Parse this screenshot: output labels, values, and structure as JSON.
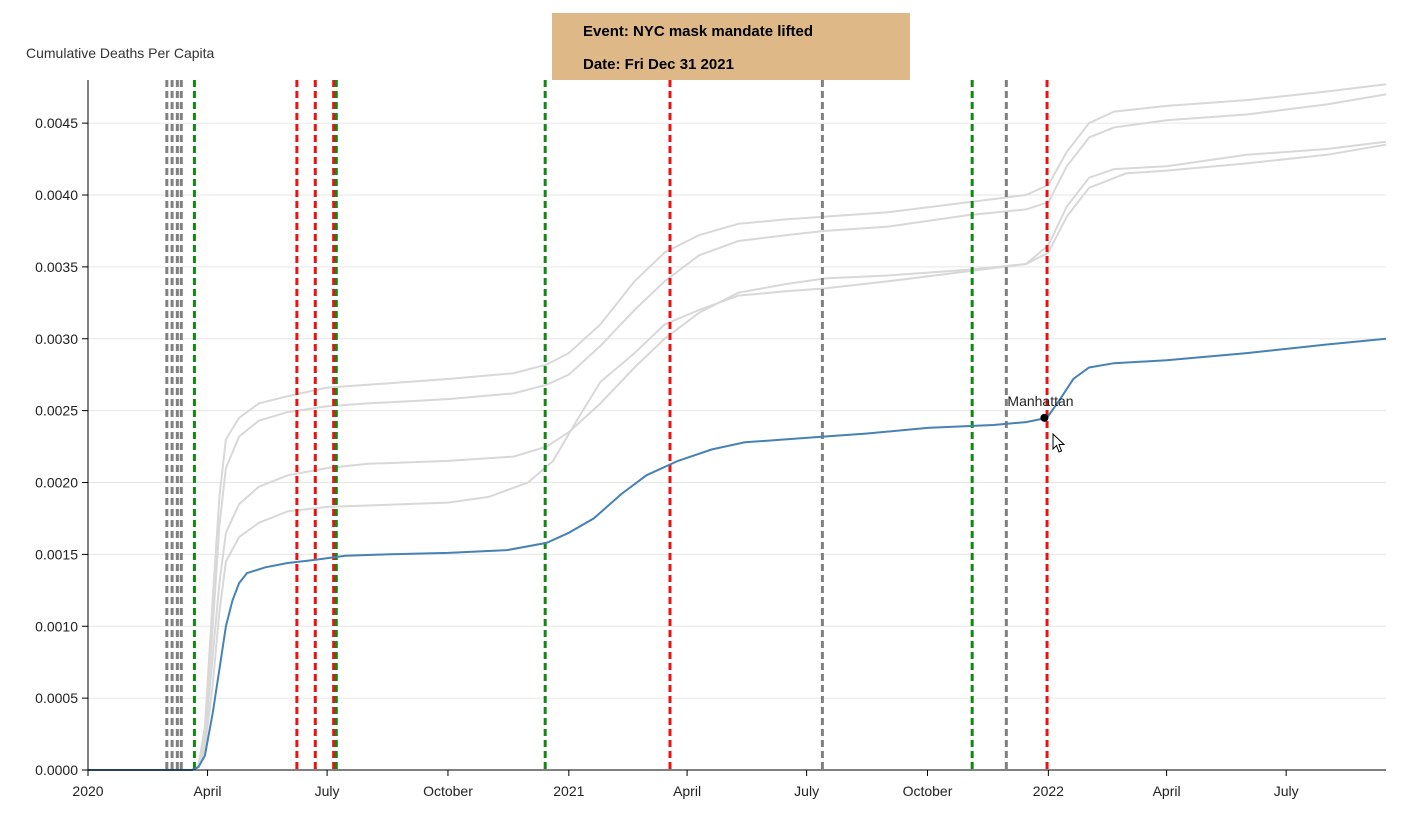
{
  "chart_data": {
    "type": "line",
    "ylabel": "Cumulative Deaths Per Capita",
    "xlim": [
      "2020-01-01",
      "2022-09-15"
    ],
    "ylim": [
      0,
      0.0048
    ],
    "yticks": [
      0.0,
      0.0005,
      0.001,
      0.0015,
      0.002,
      0.0025,
      0.003,
      0.0035,
      0.004,
      0.0045
    ],
    "ytick_labels": [
      "0.0000",
      "0.0005",
      "0.0010",
      "0.0015",
      "0.0020",
      "0.0025",
      "0.0030",
      "0.0035",
      "0.0040",
      "0.0045"
    ],
    "xticks": [
      {
        "date": "2020-01-01",
        "label": "2020"
      },
      {
        "date": "2020-04-01",
        "label": "April"
      },
      {
        "date": "2020-07-01",
        "label": "July"
      },
      {
        "date": "2020-10-01",
        "label": "October"
      },
      {
        "date": "2021-01-01",
        "label": "2021"
      },
      {
        "date": "2021-04-01",
        "label": "April"
      },
      {
        "date": "2021-07-01",
        "label": "July"
      },
      {
        "date": "2021-10-01",
        "label": "October"
      },
      {
        "date": "2022-01-01",
        "label": "2022"
      },
      {
        "date": "2022-04-01",
        "label": "April"
      },
      {
        "date": "2022-07-01",
        "label": "July"
      }
    ],
    "grid": true,
    "colors": {
      "highlight": "#4682b4",
      "background_series": "#d8d8d8",
      "event_red": "#ee1111",
      "event_green": "#118811",
      "event_gray": "#808080",
      "grid": "#e6e6e6",
      "tooltip_bg": "#deb887"
    },
    "series": [
      {
        "name": "Manhattan",
        "highlight": true,
        "points": [
          [
            "2020-01-01",
            0.0
          ],
          [
            "2020-03-20",
            0.0
          ],
          [
            "2020-03-25",
            2e-05
          ],
          [
            "2020-03-30",
            0.0001
          ],
          [
            "2020-04-05",
            0.0004
          ],
          [
            "2020-04-10",
            0.0007
          ],
          [
            "2020-04-15",
            0.001
          ],
          [
            "2020-04-20",
            0.00118
          ],
          [
            "2020-04-25",
            0.0013
          ],
          [
            "2020-05-01",
            0.00137
          ],
          [
            "2020-05-15",
            0.00141
          ],
          [
            "2020-06-01",
            0.00144
          ],
          [
            "2020-06-20",
            0.00146
          ],
          [
            "2020-07-15",
            0.00149
          ],
          [
            "2020-08-15",
            0.0015
          ],
          [
            "2020-10-01",
            0.00151
          ],
          [
            "2020-11-15",
            0.00153
          ],
          [
            "2020-12-15",
            0.00158
          ],
          [
            "2021-01-01",
            0.00165
          ],
          [
            "2021-01-20",
            0.00175
          ],
          [
            "2021-02-10",
            0.00192
          ],
          [
            "2021-03-01",
            0.00205
          ],
          [
            "2021-03-25",
            0.00215
          ],
          [
            "2021-04-20",
            0.00223
          ],
          [
            "2021-05-15",
            0.00228
          ],
          [
            "2021-06-15",
            0.0023
          ],
          [
            "2021-07-15",
            0.00232
          ],
          [
            "2021-08-15",
            0.00234
          ],
          [
            "2021-10-01",
            0.00238
          ],
          [
            "2021-11-20",
            0.0024
          ],
          [
            "2021-12-15",
            0.00242
          ],
          [
            "2021-12-31",
            0.00245
          ],
          [
            "2022-01-10",
            0.00258
          ],
          [
            "2022-01-20",
            0.00272
          ],
          [
            "2022-02-01",
            0.0028
          ],
          [
            "2022-02-20",
            0.00283
          ],
          [
            "2022-04-01",
            0.00285
          ],
          [
            "2022-06-01",
            0.0029
          ],
          [
            "2022-08-01",
            0.00296
          ],
          [
            "2022-09-15",
            0.003
          ]
        ]
      },
      {
        "highlight": false,
        "points": [
          [
            "2020-01-01",
            0.0
          ],
          [
            "2020-03-20",
            0.0
          ],
          [
            "2020-03-25",
            3e-05
          ],
          [
            "2020-03-30",
            0.0003
          ],
          [
            "2020-04-05",
            0.0012
          ],
          [
            "2020-04-10",
            0.0019
          ],
          [
            "2020-04-15",
            0.0023
          ],
          [
            "2020-04-25",
            0.00245
          ],
          [
            "2020-05-10",
            0.00255
          ],
          [
            "2020-06-01",
            0.0026
          ],
          [
            "2020-07-01",
            0.00266
          ],
          [
            "2020-08-01",
            0.00268
          ],
          [
            "2020-10-01",
            0.00272
          ],
          [
            "2020-11-20",
            0.00276
          ],
          [
            "2020-12-15",
            0.00282
          ],
          [
            "2021-01-01",
            0.0029
          ],
          [
            "2021-01-25",
            0.0031
          ],
          [
            "2021-02-20",
            0.0034
          ],
          [
            "2021-03-15",
            0.0036
          ],
          [
            "2021-04-10",
            0.00372
          ],
          [
            "2021-05-10",
            0.0038
          ],
          [
            "2021-06-15",
            0.00383
          ],
          [
            "2021-07-15",
            0.00385
          ],
          [
            "2021-09-01",
            0.00388
          ],
          [
            "2021-11-01",
            0.00395
          ],
          [
            "2021-12-15",
            0.004
          ],
          [
            "2022-01-01",
            0.00407
          ],
          [
            "2022-01-15",
            0.0043
          ],
          [
            "2022-02-01",
            0.0045
          ],
          [
            "2022-02-20",
            0.00458
          ],
          [
            "2022-04-01",
            0.00462
          ],
          [
            "2022-06-01",
            0.00466
          ],
          [
            "2022-08-01",
            0.00472
          ],
          [
            "2022-09-15",
            0.00477
          ]
        ]
      },
      {
        "highlight": false,
        "points": [
          [
            "2020-01-01",
            0.0
          ],
          [
            "2020-03-20",
            0.0
          ],
          [
            "2020-03-25",
            2e-05
          ],
          [
            "2020-03-30",
            0.00025
          ],
          [
            "2020-04-05",
            0.001
          ],
          [
            "2020-04-10",
            0.0017
          ],
          [
            "2020-04-15",
            0.0021
          ],
          [
            "2020-04-25",
            0.00232
          ],
          [
            "2020-05-10",
            0.00243
          ],
          [
            "2020-06-01",
            0.00249
          ],
          [
            "2020-07-01",
            0.00253
          ],
          [
            "2020-08-01",
            0.00255
          ],
          [
            "2020-10-01",
            0.00258
          ],
          [
            "2020-11-20",
            0.00262
          ],
          [
            "2020-12-15",
            0.00268
          ],
          [
            "2021-01-01",
            0.00275
          ],
          [
            "2021-01-25",
            0.00295
          ],
          [
            "2021-02-20",
            0.0032
          ],
          [
            "2021-03-15",
            0.0034
          ],
          [
            "2021-04-10",
            0.00358
          ],
          [
            "2021-05-10",
            0.00368
          ],
          [
            "2021-06-15",
            0.00372
          ],
          [
            "2021-07-15",
            0.00375
          ],
          [
            "2021-09-01",
            0.00378
          ],
          [
            "2021-11-01",
            0.00386
          ],
          [
            "2021-12-15",
            0.0039
          ],
          [
            "2022-01-01",
            0.00395
          ],
          [
            "2022-01-15",
            0.0042
          ],
          [
            "2022-02-01",
            0.0044
          ],
          [
            "2022-02-20",
            0.00447
          ],
          [
            "2022-04-01",
            0.00452
          ],
          [
            "2022-06-01",
            0.00456
          ],
          [
            "2022-08-01",
            0.00463
          ],
          [
            "2022-09-15",
            0.0047
          ]
        ]
      },
      {
        "highlight": false,
        "points": [
          [
            "2020-01-01",
            0.0
          ],
          [
            "2020-03-20",
            0.0
          ],
          [
            "2020-03-25",
            2e-05
          ],
          [
            "2020-03-30",
            0.0002
          ],
          [
            "2020-04-05",
            0.0008
          ],
          [
            "2020-04-10",
            0.0013
          ],
          [
            "2020-04-15",
            0.00165
          ],
          [
            "2020-04-25",
            0.00185
          ],
          [
            "2020-05-10",
            0.00197
          ],
          [
            "2020-06-01",
            0.00205
          ],
          [
            "2020-07-01",
            0.0021
          ],
          [
            "2020-08-01",
            0.00213
          ],
          [
            "2020-10-01",
            0.00215
          ],
          [
            "2020-11-20",
            0.00218
          ],
          [
            "2020-12-15",
            0.00225
          ],
          [
            "2021-01-01",
            0.00235
          ],
          [
            "2021-01-25",
            0.00255
          ],
          [
            "2021-02-20",
            0.0028
          ],
          [
            "2021-03-15",
            0.003
          ],
          [
            "2021-04-10",
            0.00318
          ],
          [
            "2021-05-10",
            0.00332
          ],
          [
            "2021-06-15",
            0.00338
          ],
          [
            "2021-07-15",
            0.00342
          ],
          [
            "2021-09-01",
            0.00344
          ],
          [
            "2021-11-01",
            0.00348
          ],
          [
            "2021-12-15",
            0.00352
          ],
          [
            "2022-01-01",
            0.00365
          ],
          [
            "2022-01-15",
            0.00392
          ],
          [
            "2022-02-01",
            0.00412
          ],
          [
            "2022-02-20",
            0.00418
          ],
          [
            "2022-04-01",
            0.0042
          ],
          [
            "2022-06-01",
            0.00428
          ],
          [
            "2022-08-01",
            0.00432
          ],
          [
            "2022-09-15",
            0.00437
          ]
        ]
      },
      {
        "highlight": false,
        "points": [
          [
            "2020-01-01",
            0.0
          ],
          [
            "2020-03-20",
            0.0
          ],
          [
            "2020-03-25",
            2e-05
          ],
          [
            "2020-03-30",
            0.00015
          ],
          [
            "2020-04-05",
            0.0006
          ],
          [
            "2020-04-10",
            0.0011
          ],
          [
            "2020-04-15",
            0.00145
          ],
          [
            "2020-04-25",
            0.00162
          ],
          [
            "2020-05-10",
            0.00172
          ],
          [
            "2020-06-01",
            0.0018
          ],
          [
            "2020-07-01",
            0.00183
          ],
          [
            "2020-08-01",
            0.00184
          ],
          [
            "2020-10-01",
            0.00186
          ],
          [
            "2020-11-01",
            0.0019
          ],
          [
            "2020-12-01",
            0.002
          ],
          [
            "2020-12-20",
            0.00215
          ],
          [
            "2021-01-05",
            0.0024
          ],
          [
            "2021-01-25",
            0.0027
          ],
          [
            "2021-02-20",
            0.0029
          ],
          [
            "2021-03-15",
            0.0031
          ],
          [
            "2021-04-10",
            0.0032
          ],
          [
            "2021-05-10",
            0.0033
          ],
          [
            "2021-06-15",
            0.00333
          ],
          [
            "2021-07-15",
            0.00335
          ],
          [
            "2021-09-01",
            0.0034
          ],
          [
            "2021-11-01",
            0.00347
          ],
          [
            "2021-12-15",
            0.00352
          ],
          [
            "2022-01-01",
            0.0036
          ],
          [
            "2022-01-15",
            0.00385
          ],
          [
            "2022-02-01",
            0.00405
          ],
          [
            "2022-03-01",
            0.00415
          ],
          [
            "2022-04-01",
            0.00417
          ],
          [
            "2022-06-01",
            0.00422
          ],
          [
            "2022-08-01",
            0.00428
          ],
          [
            "2022-09-15",
            0.00435
          ]
        ]
      }
    ],
    "events": [
      {
        "date": "2020-03-01",
        "color": "gray"
      },
      {
        "date": "2020-03-05",
        "color": "gray"
      },
      {
        "date": "2020-03-09",
        "color": "gray"
      },
      {
        "date": "2020-03-12",
        "color": "gray"
      },
      {
        "date": "2020-03-22",
        "color": "green"
      },
      {
        "date": "2020-06-08",
        "color": "red"
      },
      {
        "date": "2020-06-22",
        "color": "red"
      },
      {
        "date": "2020-07-06",
        "color": "red"
      },
      {
        "date": "2020-07-08",
        "color": "green"
      },
      {
        "date": "2020-12-14",
        "color": "green"
      },
      {
        "date": "2021-03-19",
        "color": "red"
      },
      {
        "date": "2021-07-13",
        "color": "gray"
      },
      {
        "date": "2021-11-04",
        "color": "green"
      },
      {
        "date": "2021-11-30",
        "color": "gray"
      },
      {
        "date": "2021-12-31",
        "color": "red"
      }
    ],
    "hover": {
      "series_label": "Manhattan",
      "date": "2021-12-29",
      "value": 0.00245
    },
    "tooltip": {
      "event_line": "Event: NYC mask mandate lifted",
      "date_line": "Date: Fri Dec 31 2021"
    }
  }
}
